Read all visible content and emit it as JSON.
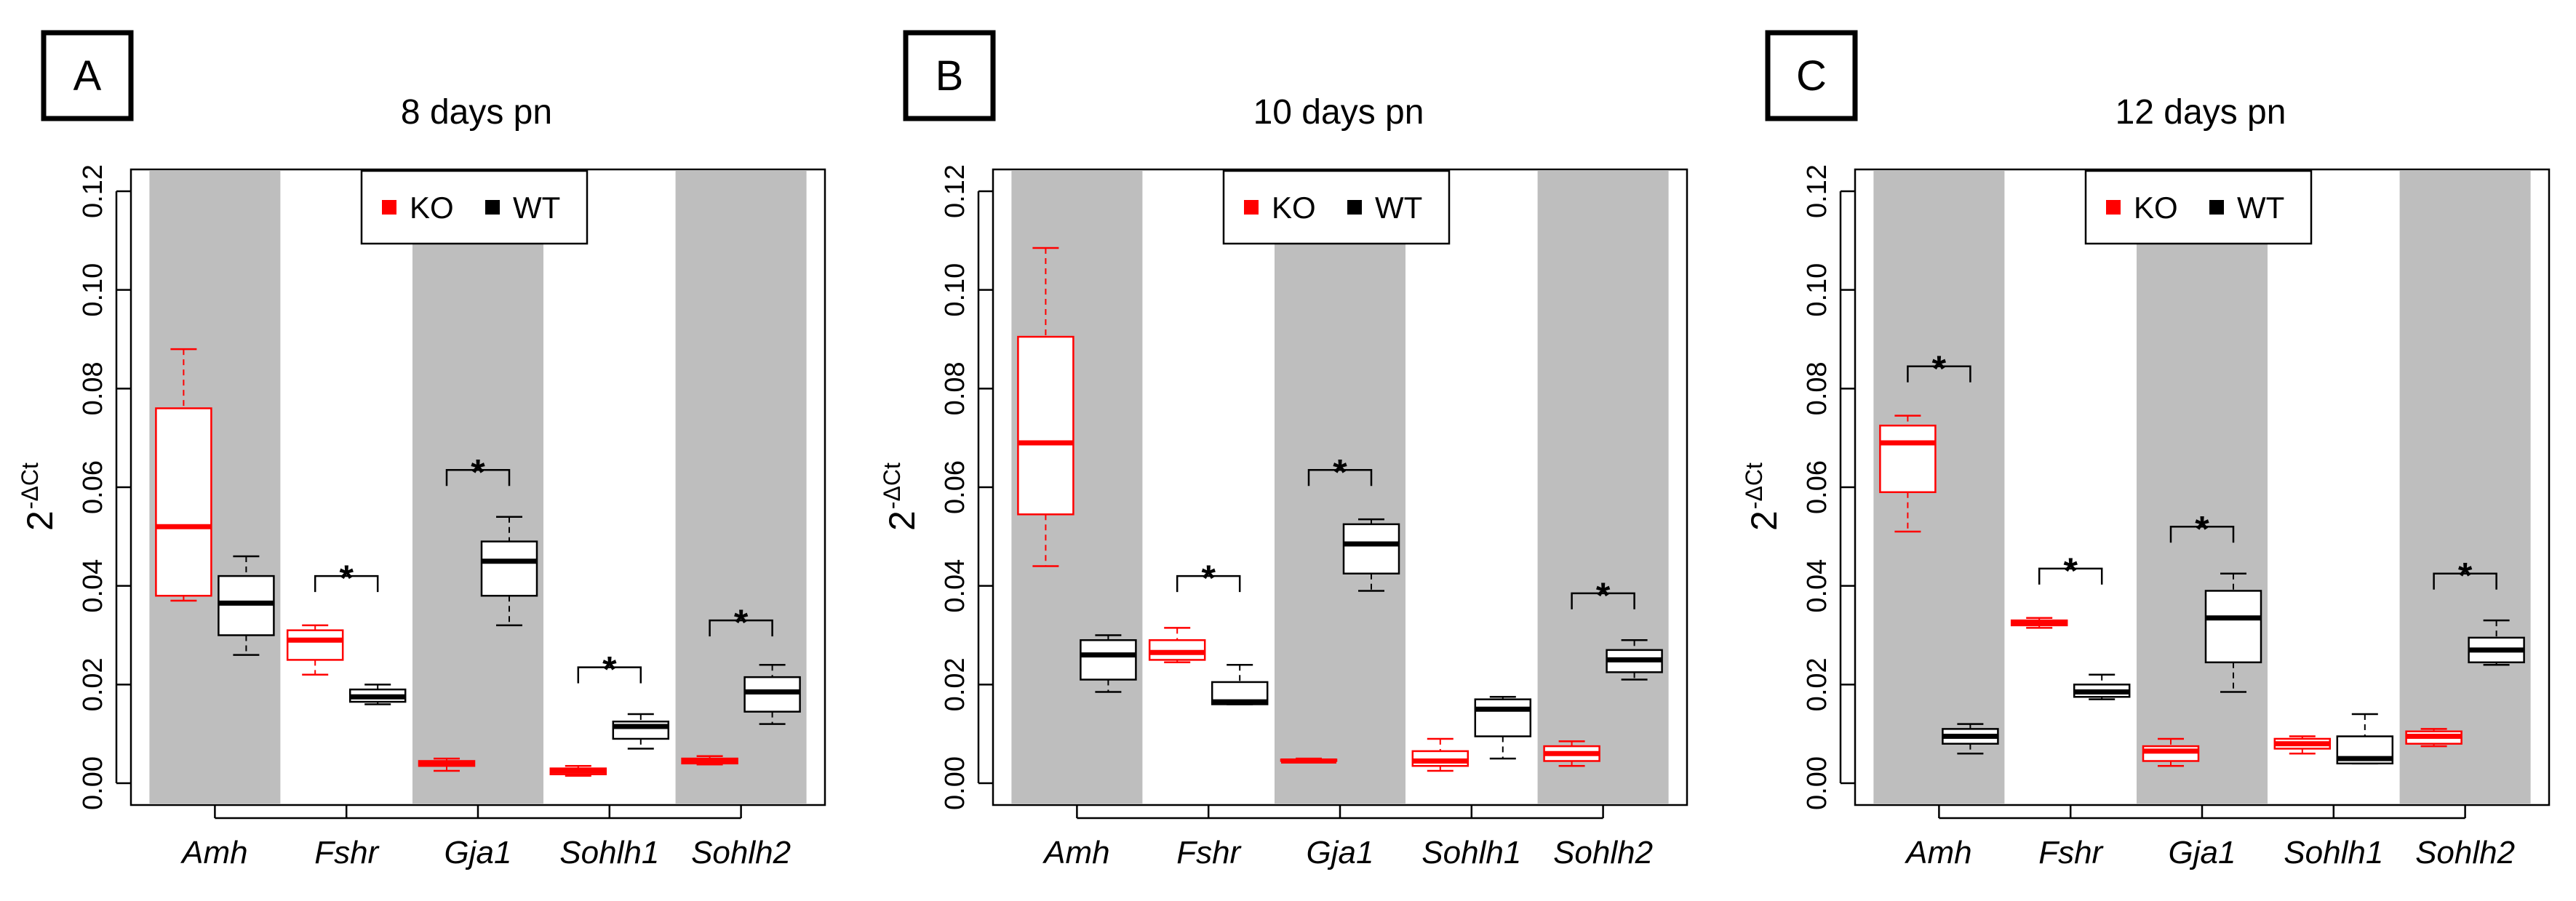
{
  "figure": {
    "ylabel": "2",
    "ylabel_superscript": "-ΔCt",
    "colors": {
      "KO": "#ff0000",
      "WT": "#000000",
      "band": "#bebebe"
    }
  },
  "chart_data": [
    {
      "type": "boxplot",
      "panel_label": "A",
      "title": "8 days pn",
      "ylim": [
        0,
        0.12
      ],
      "yticks": [
        "0.00",
        "0.02",
        "0.04",
        "0.06",
        "0.08",
        "0.10",
        "0.12"
      ],
      "legend": [
        {
          "label": "KO",
          "color": "#ff0000"
        },
        {
          "label": "WT",
          "color": "#000000"
        }
      ],
      "categories": [
        "Amh",
        "Fshr",
        "Gja1",
        "Sohlh1",
        "Sohlh2"
      ],
      "shaded": [
        true,
        false,
        true,
        false,
        true
      ],
      "series": [
        {
          "name": "KO",
          "color": "#ff0000",
          "boxes": [
            {
              "min": 0.037,
              "q1": 0.038,
              "median": 0.052,
              "q3": 0.076,
              "max": 0.088
            },
            {
              "min": 0.022,
              "q1": 0.025,
              "median": 0.029,
              "q3": 0.031,
              "max": 0.032
            },
            {
              "min": 0.0025,
              "q1": 0.0035,
              "median": 0.004,
              "q3": 0.0045,
              "max": 0.005
            },
            {
              "min": 0.0015,
              "q1": 0.0018,
              "median": 0.0025,
              "q3": 0.003,
              "max": 0.0035
            },
            {
              "min": 0.0038,
              "q1": 0.004,
              "median": 0.0045,
              "q3": 0.005,
              "max": 0.0055
            }
          ]
        },
        {
          "name": "WT",
          "color": "#000000",
          "boxes": [
            {
              "min": 0.026,
              "q1": 0.03,
              "median": 0.0365,
              "q3": 0.042,
              "max": 0.046
            },
            {
              "min": 0.016,
              "q1": 0.0165,
              "median": 0.0175,
              "q3": 0.019,
              "max": 0.02
            },
            {
              "min": 0.032,
              "q1": 0.038,
              "median": 0.045,
              "q3": 0.049,
              "max": 0.054
            },
            {
              "min": 0.007,
              "q1": 0.009,
              "median": 0.0115,
              "q3": 0.0125,
              "max": 0.014
            },
            {
              "min": 0.012,
              "q1": 0.0145,
              "median": 0.0185,
              "q3": 0.0215,
              "max": 0.024
            }
          ]
        }
      ],
      "significance": [
        {
          "category": "Fshr",
          "label": "*",
          "y": 0.042
        },
        {
          "category": "Gja1",
          "label": "*",
          "y": 0.0635
        },
        {
          "category": "Sohlh1",
          "label": "*",
          "y": 0.0235
        },
        {
          "category": "Sohlh2",
          "label": "*",
          "y": 0.033
        }
      ]
    },
    {
      "type": "boxplot",
      "panel_label": "B",
      "title": "10 days pn",
      "ylim": [
        0,
        0.12
      ],
      "yticks": [
        "0.00",
        "0.02",
        "0.04",
        "0.06",
        "0.08",
        "0.10",
        "0.12"
      ],
      "legend": [
        {
          "label": "KO",
          "color": "#ff0000"
        },
        {
          "label": "WT",
          "color": "#000000"
        }
      ],
      "categories": [
        "Amh",
        "Fshr",
        "Gja1",
        "Sohlh1",
        "Sohlh2"
      ],
      "shaded": [
        true,
        false,
        true,
        false,
        true
      ],
      "series": [
        {
          "name": "KO",
          "color": "#ff0000",
          "boxes": [
            {
              "min": 0.044,
              "q1": 0.0545,
              "median": 0.069,
              "q3": 0.0905,
              "max": 0.1085
            },
            {
              "min": 0.0245,
              "q1": 0.025,
              "median": 0.0265,
              "q3": 0.029,
              "max": 0.0315
            },
            {
              "min": 0.0045,
              "q1": 0.0045,
              "median": 0.0045,
              "q3": 0.0048,
              "max": 0.005
            },
            {
              "min": 0.0025,
              "q1": 0.0035,
              "median": 0.0045,
              "q3": 0.0065,
              "max": 0.009
            },
            {
              "min": 0.0035,
              "q1": 0.0045,
              "median": 0.006,
              "q3": 0.0075,
              "max": 0.0085
            }
          ]
        },
        {
          "name": "WT",
          "color": "#000000",
          "boxes": [
            {
              "min": 0.0185,
              "q1": 0.021,
              "median": 0.026,
              "q3": 0.029,
              "max": 0.03
            },
            {
              "min": 0.016,
              "q1": 0.016,
              "median": 0.0165,
              "q3": 0.0205,
              "max": 0.024
            },
            {
              "min": 0.039,
              "q1": 0.0425,
              "median": 0.0485,
              "q3": 0.0525,
              "max": 0.0535
            },
            {
              "min": 0.005,
              "q1": 0.0095,
              "median": 0.015,
              "q3": 0.017,
              "max": 0.0175
            },
            {
              "min": 0.021,
              "q1": 0.0225,
              "median": 0.025,
              "q3": 0.027,
              "max": 0.029
            }
          ]
        }
      ],
      "significance": [
        {
          "category": "Fshr",
          "label": "*",
          "y": 0.042
        },
        {
          "category": "Gja1",
          "label": "*",
          "y": 0.0635
        },
        {
          "category": "Sohlh2",
          "label": "*",
          "y": 0.0385
        }
      ]
    },
    {
      "type": "boxplot",
      "panel_label": "C",
      "title": "12 days pn",
      "ylim": [
        0,
        0.12
      ],
      "yticks": [
        "0.00",
        "0.02",
        "0.04",
        "0.06",
        "0.08",
        "0.10",
        "0.12"
      ],
      "legend": [
        {
          "label": "KO",
          "color": "#ff0000"
        },
        {
          "label": "WT",
          "color": "#000000"
        }
      ],
      "categories": [
        "Amh",
        "Fshr",
        "Gja1",
        "Sohlh1",
        "Sohlh2"
      ],
      "shaded": [
        true,
        false,
        true,
        false,
        true
      ],
      "series": [
        {
          "name": "KO",
          "color": "#ff0000",
          "boxes": [
            {
              "min": 0.051,
              "q1": 0.059,
              "median": 0.069,
              "q3": 0.0725,
              "max": 0.0745
            },
            {
              "min": 0.0315,
              "q1": 0.032,
              "median": 0.0325,
              "q3": 0.033,
              "max": 0.0335
            },
            {
              "min": 0.0035,
              "q1": 0.0045,
              "median": 0.0065,
              "q3": 0.0075,
              "max": 0.009
            },
            {
              "min": 0.006,
              "q1": 0.007,
              "median": 0.008,
              "q3": 0.009,
              "max": 0.0095
            },
            {
              "min": 0.0075,
              "q1": 0.008,
              "median": 0.0095,
              "q3": 0.0105,
              "max": 0.011
            }
          ]
        },
        {
          "name": "WT",
          "color": "#000000",
          "boxes": [
            {
              "min": 0.006,
              "q1": 0.008,
              "median": 0.0095,
              "q3": 0.011,
              "max": 0.012
            },
            {
              "min": 0.017,
              "q1": 0.0175,
              "median": 0.0185,
              "q3": 0.02,
              "max": 0.022
            },
            {
              "min": 0.0185,
              "q1": 0.0245,
              "median": 0.0335,
              "q3": 0.039,
              "max": 0.0425
            },
            {
              "min": 0.004,
              "q1": 0.004,
              "median": 0.005,
              "q3": 0.0095,
              "max": 0.014
            },
            {
              "min": 0.024,
              "q1": 0.0245,
              "median": 0.027,
              "q3": 0.0295,
              "max": 0.033
            }
          ]
        }
      ],
      "significance": [
        {
          "category": "Amh",
          "label": "*",
          "y": 0.0845
        },
        {
          "category": "Fshr",
          "label": "*",
          "y": 0.0435
        },
        {
          "category": "Gja1",
          "label": "*",
          "y": 0.052
        },
        {
          "category": "Sohlh2",
          "label": "*",
          "y": 0.0425
        }
      ]
    }
  ]
}
